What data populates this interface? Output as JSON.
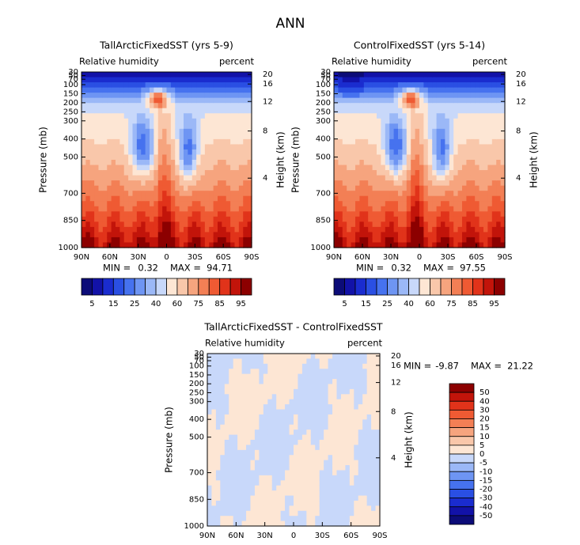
{
  "title": "ANN",
  "chart_data": [
    {
      "type": "contour",
      "title": "TallArcticFixedSST (yrs 5-9)",
      "subtitle_left": "Relative humidity",
      "subtitle_right": "percent",
      "ylabel": "Pressure (mb)",
      "y2label": "Height (km)",
      "xlim": [
        90,
        -90
      ],
      "xticks": [
        {
          "value": 90,
          "label": "90N"
        },
        {
          "value": 60,
          "label": "60N"
        },
        {
          "value": 30,
          "label": "30N"
        },
        0,
        {
          "value": -30,
          "label": "30S"
        },
        {
          "value": -60,
          "label": "60S"
        },
        {
          "value": -90,
          "label": "90S"
        }
      ],
      "ylim": [
        1000,
        30
      ],
      "yticks": [
        30,
        50,
        70,
        100,
        150,
        200,
        250,
        300,
        400,
        500,
        700,
        850,
        1000
      ],
      "y2ticks": [
        4,
        8,
        12,
        16,
        20
      ],
      "min_label": "MIN =",
      "min": 0.32,
      "max_label": "MAX =",
      "max": 94.71,
      "colorbar": {
        "orientation": "horizontal",
        "labels": [
          5,
          15,
          25,
          40,
          60,
          75,
          85,
          95
        ],
        "colors": [
          "#0c0c78",
          "#1212a8",
          "#1a2ccf",
          "#2a4fe3",
          "#4672ef",
          "#6e95f3",
          "#9bb8f7",
          "#c8d8fa",
          "#fde6d4",
          "#f9c7aa",
          "#f6a47e",
          "#f37f55",
          "#ef5a33",
          "#e1331a",
          "#c2140a",
          "#8c0000"
        ]
      }
    },
    {
      "type": "contour",
      "title": "ControlFixedSST (yrs 5-14)",
      "subtitle_left": "Relative humidity",
      "subtitle_right": "percent",
      "ylabel": "Pressure (mb)",
      "y2label": "Height (km)",
      "xlim": [
        90,
        -90
      ],
      "xticks": [
        {
          "value": 90,
          "label": "90N"
        },
        {
          "value": 60,
          "label": "60N"
        },
        {
          "value": 30,
          "label": "30N"
        },
        0,
        {
          "value": -30,
          "label": "30S"
        },
        {
          "value": -60,
          "label": "60S"
        },
        {
          "value": -90,
          "label": "90S"
        }
      ],
      "ylim": [
        1000,
        30
      ],
      "yticks": [
        30,
        50,
        70,
        100,
        150,
        200,
        250,
        300,
        400,
        500,
        700,
        850,
        1000
      ],
      "y2ticks": [
        4,
        8,
        12,
        16,
        20
      ],
      "min_label": "MIN =",
      "min": 0.32,
      "max_label": "MAX =",
      "max": 97.55,
      "colorbar": {
        "orientation": "horizontal",
        "labels": [
          5,
          15,
          25,
          40,
          60,
          75,
          85,
          95
        ],
        "colors": [
          "#0c0c78",
          "#1212a8",
          "#1a2ccf",
          "#2a4fe3",
          "#4672ef",
          "#6e95f3",
          "#9bb8f7",
          "#c8d8fa",
          "#fde6d4",
          "#f9c7aa",
          "#f6a47e",
          "#f37f55",
          "#ef5a33",
          "#e1331a",
          "#c2140a",
          "#8c0000"
        ]
      }
    },
    {
      "type": "contour",
      "title": "TallArcticFixedSST - ControlFixedSST",
      "subtitle_left": "Relative humidity",
      "subtitle_right": "percent",
      "ylabel": "Pressure (mb)",
      "y2label": "Height (km)",
      "xlim": [
        90,
        -90
      ],
      "xticks": [
        {
          "value": 90,
          "label": "90N"
        },
        {
          "value": 60,
          "label": "60N"
        },
        {
          "value": 30,
          "label": "30N"
        },
        0,
        {
          "value": -30,
          "label": "30S"
        },
        {
          "value": -60,
          "label": "60S"
        },
        {
          "value": -90,
          "label": "90S"
        }
      ],
      "ylim": [
        1000,
        30
      ],
      "yticks": [
        30,
        50,
        70,
        100,
        150,
        200,
        250,
        300,
        400,
        500,
        700,
        850,
        1000
      ],
      "y2ticks": [
        4,
        8,
        12,
        16,
        20
      ],
      "min_label": "MIN =",
      "min": -9.87,
      "max_label": "MAX =",
      "max": 21.22,
      "colorbar": {
        "orientation": "vertical",
        "labels": [
          50,
          40,
          30,
          20,
          15,
          10,
          5,
          0,
          -5,
          -10,
          -15,
          -20,
          -30,
          -40,
          -50
        ],
        "colors": [
          "#8c0000",
          "#c2140a",
          "#e1331a",
          "#ef5a33",
          "#f37f55",
          "#f6a47e",
          "#f9c7aa",
          "#fde6d4",
          "#c8d8fa",
          "#9bb8f7",
          "#6e95f3",
          "#4672ef",
          "#2a4fe3",
          "#1a2ccf",
          "#1212a8",
          "#0c0c78"
        ]
      }
    }
  ]
}
